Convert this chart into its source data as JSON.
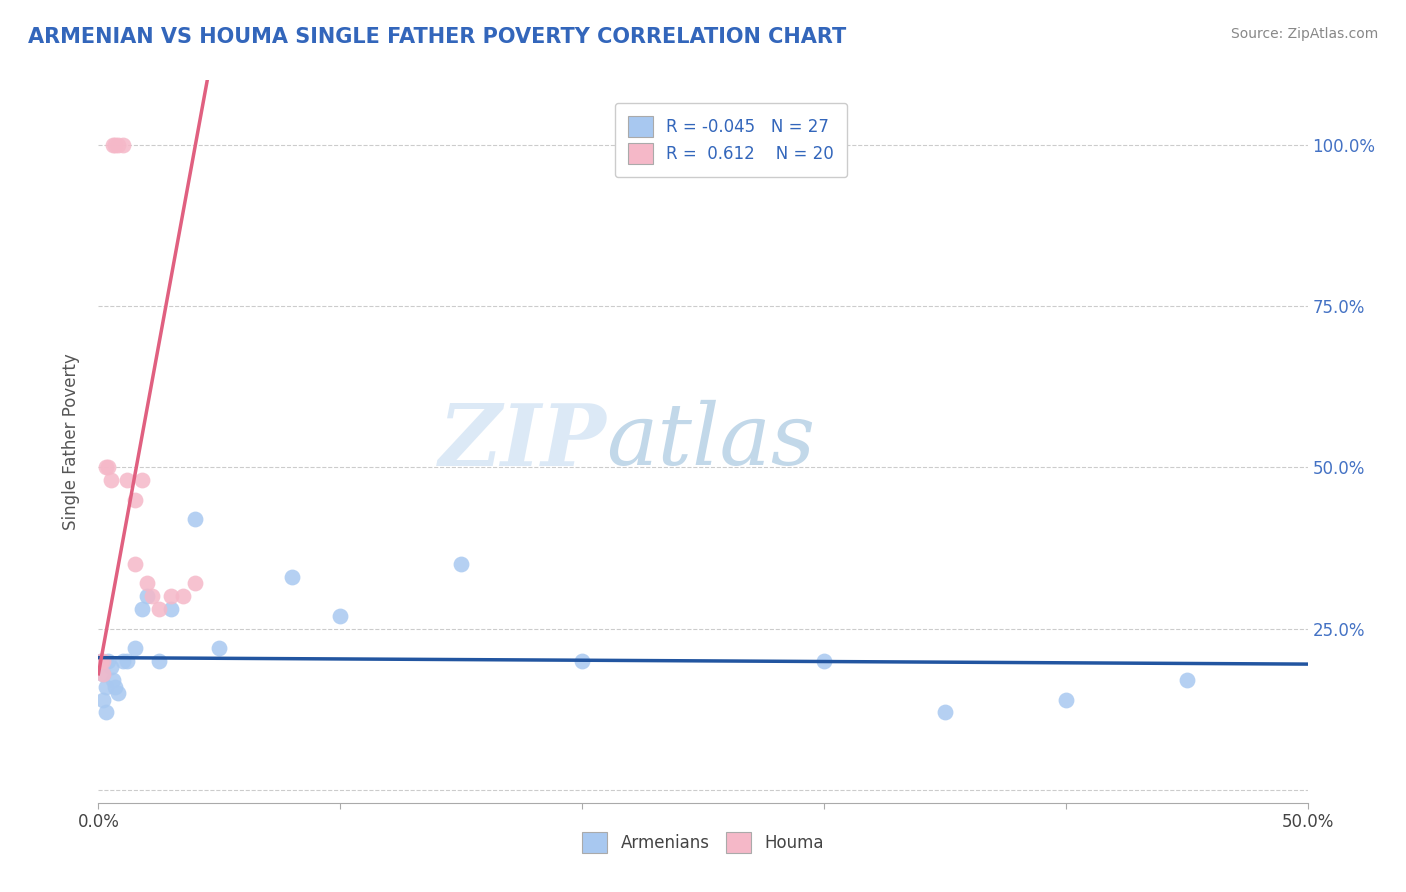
{
  "title": "ARMENIAN VS HOUMA SINGLE FATHER POVERTY CORRELATION CHART",
  "source": "Source: ZipAtlas.com",
  "ylabel": "Single Father Poverty",
  "xlim": [
    0.0,
    0.5
  ],
  "ylim": [
    -0.02,
    1.1
  ],
  "xticks": [
    0.0,
    0.1,
    0.2,
    0.3,
    0.4,
    0.5
  ],
  "xticklabels": [
    "0.0%",
    "",
    "",
    "",
    "",
    "50.0%"
  ],
  "yticks": [
    0.0,
    0.25,
    0.5,
    0.75,
    1.0
  ],
  "yticklabels_right": [
    "",
    "25.0%",
    "50.0%",
    "75.0%",
    "100.0%"
  ],
  "armenian_color": "#a8c8f0",
  "houma_color": "#f5b8c8",
  "armenian_line_color": "#2255a0",
  "houma_line_color": "#e06080",
  "legend_R_armenian": "-0.045",
  "legend_N_armenian": "27",
  "legend_R_houma": "0.612",
  "legend_N_houma": "20",
  "watermark_zip": "ZIP",
  "watermark_atlas": "atlas",
  "armenian_x": [
    0.001,
    0.002,
    0.002,
    0.003,
    0.003,
    0.004,
    0.005,
    0.006,
    0.007,
    0.008,
    0.01,
    0.012,
    0.015,
    0.018,
    0.02,
    0.025,
    0.03,
    0.04,
    0.05,
    0.08,
    0.1,
    0.15,
    0.2,
    0.3,
    0.35,
    0.4,
    0.45
  ],
  "armenian_y": [
    0.2,
    0.18,
    0.14,
    0.16,
    0.12,
    0.2,
    0.19,
    0.17,
    0.16,
    0.15,
    0.2,
    0.2,
    0.22,
    0.28,
    0.3,
    0.2,
    0.28,
    0.42,
    0.22,
    0.33,
    0.27,
    0.35,
    0.2,
    0.2,
    0.12,
    0.14,
    0.17
  ],
  "houma_x": [
    0.001,
    0.002,
    0.002,
    0.003,
    0.004,
    0.005,
    0.006,
    0.007,
    0.008,
    0.01,
    0.012,
    0.015,
    0.015,
    0.018,
    0.02,
    0.022,
    0.025,
    0.03,
    0.035,
    0.04
  ],
  "houma_y": [
    0.2,
    0.2,
    0.18,
    0.5,
    0.5,
    0.48,
    1.0,
    1.0,
    1.0,
    1.0,
    0.48,
    0.45,
    0.35,
    0.48,
    0.32,
    0.3,
    0.28,
    0.3,
    0.3,
    0.32
  ],
  "houma_line_x0": 0.0,
  "houma_line_y0": 0.18,
  "houma_line_x1": 0.045,
  "houma_line_y1": 1.1,
  "armenian_line_x0": 0.0,
  "armenian_line_y0": 0.205,
  "armenian_line_x1": 0.5,
  "armenian_line_y1": 0.195
}
